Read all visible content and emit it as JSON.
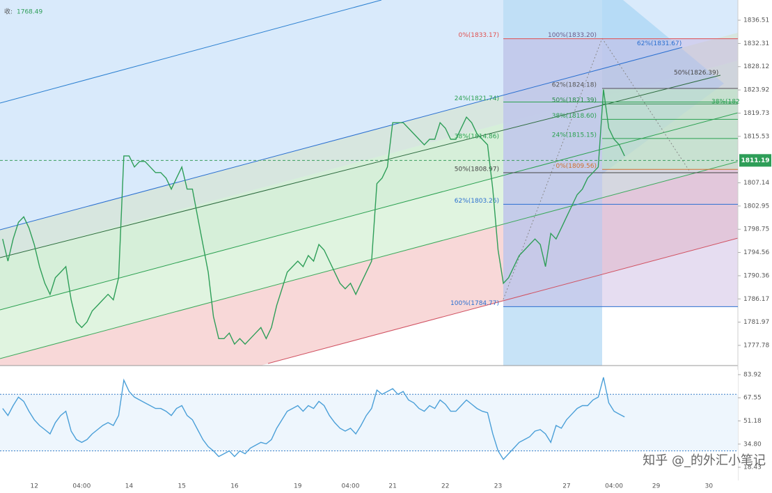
{
  "chart_data": [
    {
      "type": "line",
      "color": "#2e9e58",
      "close_label": "收:",
      "close_value": 1768.49,
      "last_value": 1811.19,
      "ylim": [
        1774.13,
        1840.16
      ],
      "yticks": [
        1836.51,
        1832.31,
        1828.12,
        1823.92,
        1819.73,
        1815.53,
        1807.14,
        1802.95,
        1798.75,
        1794.56,
        1790.36,
        1786.17,
        1781.97,
        1777.78
      ],
      "categories": [
        null,
        null,
        null,
        null,
        null,
        null,
        "12",
        null,
        null,
        null,
        null,
        null,
        null,
        null,
        null,
        "04:00",
        null,
        null,
        null,
        null,
        null,
        null,
        null,
        null,
        "14",
        null,
        null,
        null,
        null,
        null,
        null,
        null,
        null,
        null,
        "15",
        null,
        null,
        null,
        null,
        null,
        null,
        null,
        null,
        null,
        "16",
        null,
        null,
        null,
        null,
        null,
        null,
        null,
        null,
        null,
        null,
        null,
        "19",
        null,
        null,
        null,
        null,
        null,
        null,
        null,
        null,
        null,
        "04:00",
        null,
        null,
        null,
        null,
        null,
        null,
        null,
        "21",
        null,
        null,
        null,
        null,
        null,
        null,
        null,
        null,
        null,
        "22",
        null,
        null,
        null,
        null,
        null,
        null,
        null,
        null,
        null,
        "23",
        null,
        null,
        null,
        null,
        null,
        null,
        null,
        null,
        null,
        null,
        null,
        null,
        "27",
        null,
        null,
        null,
        null,
        null,
        null,
        null,
        null,
        "04:00",
        null,
        null,
        null,
        null,
        null,
        null,
        null,
        "29",
        null,
        null,
        null,
        null,
        null,
        null,
        null,
        null,
        null,
        "30",
        null,
        null,
        null,
        null,
        null
      ],
      "values": [
        1797,
        1793,
        1797,
        1800,
        1801,
        1799,
        1796,
        1792,
        1789,
        1787,
        1790,
        1791,
        1792,
        1786,
        1782,
        1781,
        1782,
        1784,
        1785,
        1786,
        1787,
        1786,
        1790,
        1812,
        1812,
        1810,
        1811,
        1811,
        1810,
        1809,
        1809,
        1808,
        1806,
        1808,
        1810,
        1806,
        1806,
        1801,
        1796,
        1791,
        1783,
        1779,
        1779,
        1780,
        1778,
        1779,
        1778,
        1779,
        1780,
        1781,
        1779,
        1781,
        1785,
        1788,
        1791,
        1792,
        1793,
        1792,
        1794,
        1793,
        1796,
        1795,
        1793,
        1791,
        1789,
        1788,
        1789,
        1787,
        1789,
        1791,
        1793,
        1807,
        1808,
        1810,
        1818,
        1818,
        1818,
        1817,
        1816,
        1815,
        1814,
        1815,
        1815,
        1818,
        1817,
        1815,
        1815,
        1817,
        1819,
        1818,
        1816,
        1815,
        1814,
        1806,
        1795,
        1789,
        1790,
        1792,
        1794,
        1795,
        1796,
        1797,
        1796,
        1792,
        1798,
        1797,
        1799,
        1801,
        1803,
        1805,
        1806,
        1808,
        1809,
        1810,
        1824,
        1817,
        1815,
        1814,
        1812,
        null,
        null,
        null,
        null,
        null,
        null,
        null,
        null,
        null,
        null,
        null,
        null,
        null,
        null,
        null,
        null,
        null,
        null,
        null,
        null,
        null
      ],
      "annotations": [
        {
          "text": "0%(1833.17)",
          "value": 1833.17,
          "color": "#e05050"
        },
        {
          "text": "100%(1833.20)",
          "value": 1833.2,
          "color": "#6a5a8a"
        },
        {
          "text": "62%(1831.67)",
          "value": 1831.67,
          "color": "#2a6fd0"
        },
        {
          "text": "50%(1826.39)",
          "value": 1826.39,
          "color": "#444444"
        },
        {
          "text": "62%(1824.18)",
          "value": 1824.18,
          "color": "#555555"
        },
        {
          "text": "24%(1821.74)",
          "value": 1821.74,
          "color": "#2aa050"
        },
        {
          "text": "50%(1821.39)",
          "value": 1821.39,
          "color": "#2a8a4a"
        },
        {
          "text": "38%(182",
          "color": "#2aa050"
        },
        {
          "text": "38%(1818.60)",
          "value": 1818.6,
          "color": "#2aa050"
        },
        {
          "text": "38%(1814.86)",
          "value": 1814.86,
          "color": "#2aa050"
        },
        {
          "text": "24%(1815.15)",
          "value": 1815.15,
          "color": "#2aa050"
        },
        {
          "text": "50%(1808.97)",
          "value": 1808.97,
          "color": "#444444"
        },
        {
          "text": "0%(1809.56)",
          "value": 1809.56,
          "color": "#d07030"
        },
        {
          "text": "62%(1803.26)",
          "value": 1803.26,
          "color": "#2a6fd0"
        },
        {
          "text": "100%(1784.77)",
          "value": 1784.77,
          "color": "#2a6fd0"
        }
      ]
    },
    {
      "type": "line",
      "color": "#4a9fd8",
      "ylim": [
        9.09,
        87.85
      ],
      "hlines": [
        70,
        30
      ],
      "yticks": [
        83.92,
        67.55,
        51.18,
        {
          "value": 34.8,
          "label": "34.80"
        },
        18.43
      ],
      "values": [
        60,
        55,
        62,
        68,
        65,
        58,
        52,
        48,
        45,
        42,
        50,
        55,
        58,
        44,
        38,
        36,
        38,
        42,
        45,
        48,
        50,
        48,
        55,
        80,
        72,
        68,
        66,
        64,
        62,
        60,
        60,
        58,
        55,
        60,
        62,
        55,
        52,
        45,
        38,
        33,
        30,
        26,
        28,
        30,
        26,
        30,
        28,
        32,
        34,
        36,
        35,
        38,
        46,
        52,
        58,
        60,
        62,
        58,
        62,
        60,
        65,
        62,
        55,
        50,
        46,
        44,
        46,
        42,
        48,
        55,
        60,
        73,
        70,
        72,
        74,
        70,
        72,
        66,
        64,
        60,
        58,
        62,
        60,
        66,
        63,
        58,
        58,
        62,
        66,
        63,
        60,
        58,
        57,
        42,
        30,
        24,
        28,
        32,
        36,
        38,
        40,
        44,
        45,
        42,
        36,
        48,
        46,
        52,
        56,
        60,
        62,
        62,
        66,
        68,
        82,
        64,
        58,
        56,
        54,
        null,
        null,
        null,
        null,
        null,
        null,
        null,
        null,
        null,
        null,
        null,
        null,
        null,
        null,
        null,
        null,
        null,
        null,
        null,
        null,
        null
      ]
    }
  ],
  "watermark": "知乎 @_的外汇小笔记"
}
